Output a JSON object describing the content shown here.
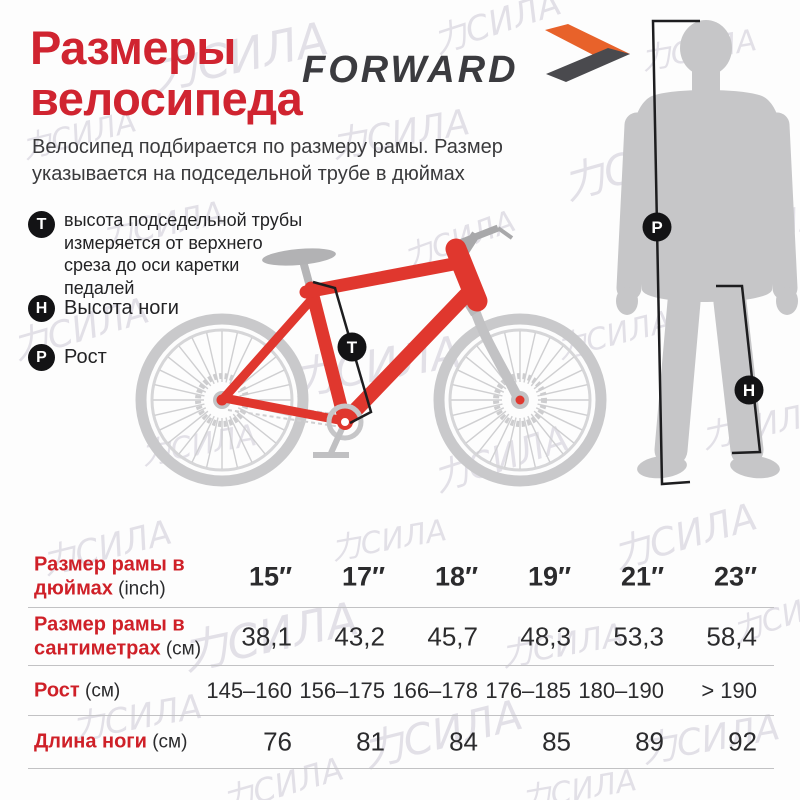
{
  "watermark_text": "力СИЛА",
  "header": {
    "title": "Размеры\nвелосипеда",
    "subtitle": "Велосипед подбирается по размеру рамы. Размер\nуказывается на подседельной трубе в дюймах",
    "brand_logo_text": "FORWARD"
  },
  "legend": [
    {
      "symbol": "T",
      "text": "высота подседельной трубы\nизмеряется от верхнего\nсреза до оси каретки\nпедалей"
    },
    {
      "symbol": "H",
      "text": "Высота ноги"
    },
    {
      "symbol": "P",
      "text": "Рост"
    }
  ],
  "diagram": {
    "seat_tube_marker": "T",
    "height_marker": "P",
    "leg_marker": "H"
  },
  "chart_data": {
    "type": "table",
    "columns": [
      "15″",
      "17″",
      "18″",
      "19″",
      "21″",
      "23″"
    ],
    "rows": [
      {
        "label": "Размер рамы в дюймах",
        "unit": "(inch)",
        "values": [
          "15″",
          "17″",
          "18″",
          "19″",
          "21″",
          "23″"
        ]
      },
      {
        "label": "Размер рамы в сантиметрах",
        "unit": "(см)",
        "values": [
          "38,1",
          "43,2",
          "45,7",
          "48,3",
          "53,3",
          "58,4"
        ]
      },
      {
        "label": "Рост",
        "unit": "(см)",
        "values": [
          "145–160",
          "156–175",
          "166–178",
          "176–185",
          "180–190",
          "> 190"
        ]
      },
      {
        "label": "Длина ноги",
        "unit": "(см)",
        "values": [
          "76",
          "81",
          "84",
          "85",
          "89",
          "92"
        ]
      }
    ]
  },
  "colors": {
    "accent_red": "#d02430",
    "frame_red": "#e0372e",
    "silhouette_gray": "#c6c6c8",
    "bike_gray": "#c9c9cb",
    "logo_dark": "#3b3b3f",
    "logo_orange": "#e8622a",
    "marker_black": "#131315",
    "divider_gray": "#c2c2c4"
  }
}
